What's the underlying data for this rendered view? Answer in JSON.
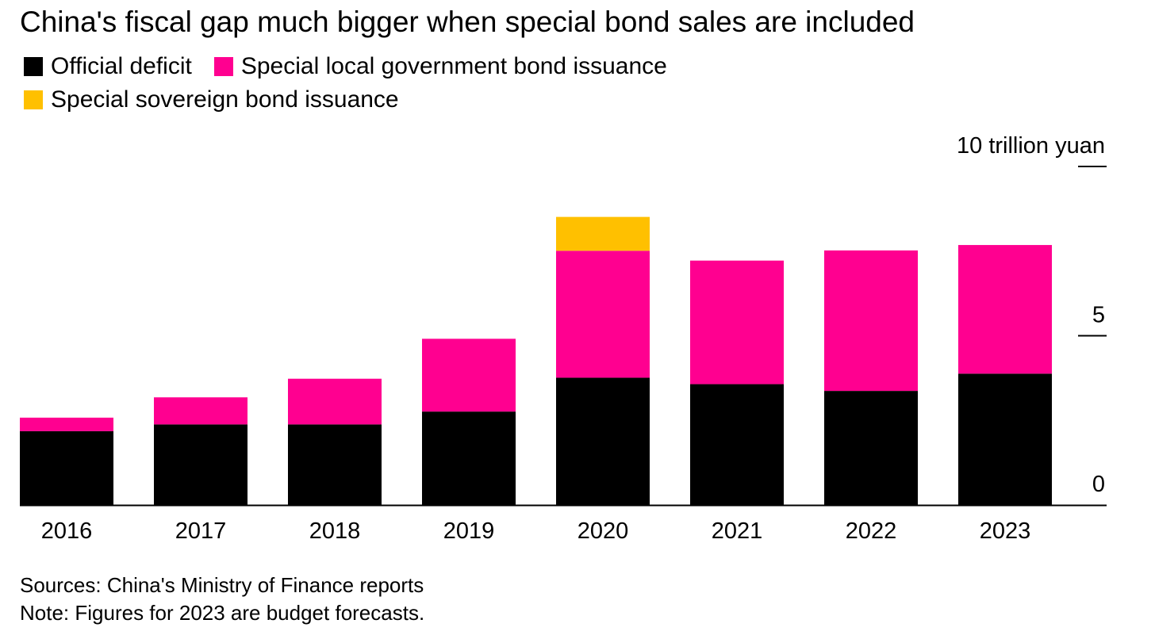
{
  "title": "China's fiscal gap much bigger when special bond sales are included",
  "legend": [
    {
      "label": "Official deficit",
      "color": "#000000"
    },
    {
      "label": "Special local government bond issuance",
      "color": "#ff0090"
    },
    {
      "label": "Special sovereign bond issuance",
      "color": "#ffc000"
    }
  ],
  "footer": {
    "sources": "Sources: China's Ministry of Finance reports",
    "note": "Note: Figures for 2023 are budget forecasts."
  },
  "chart_data": {
    "type": "bar",
    "stacked": true,
    "title": "China's fiscal gap much bigger when special bond sales are included",
    "categories": [
      "2016",
      "2017",
      "2018",
      "2019",
      "2020",
      "2021",
      "2022",
      "2023"
    ],
    "series": [
      {
        "name": "Official deficit",
        "color": "#000000",
        "values": [
          2.18,
          2.38,
          2.38,
          2.76,
          3.76,
          3.57,
          3.37,
          3.88
        ]
      },
      {
        "name": "Special local government bond issuance",
        "color": "#ff0090",
        "values": [
          0.4,
          0.8,
          1.35,
          2.15,
          3.75,
          3.65,
          4.15,
          3.8
        ]
      },
      {
        "name": "Special sovereign bond issuance",
        "color": "#ffc000",
        "values": [
          0,
          0,
          0,
          0,
          1.0,
          0,
          0,
          0
        ]
      }
    ],
    "ylim": [
      0,
      10
    ],
    "yticks": [
      {
        "value": 0,
        "label": "0"
      },
      {
        "value": 5,
        "label": "5"
      },
      {
        "value": 10,
        "label": "10 trillion yuan"
      }
    ],
    "xlabel": "",
    "ylabel": "trillion yuan",
    "axis_position": "right",
    "grid": false
  }
}
